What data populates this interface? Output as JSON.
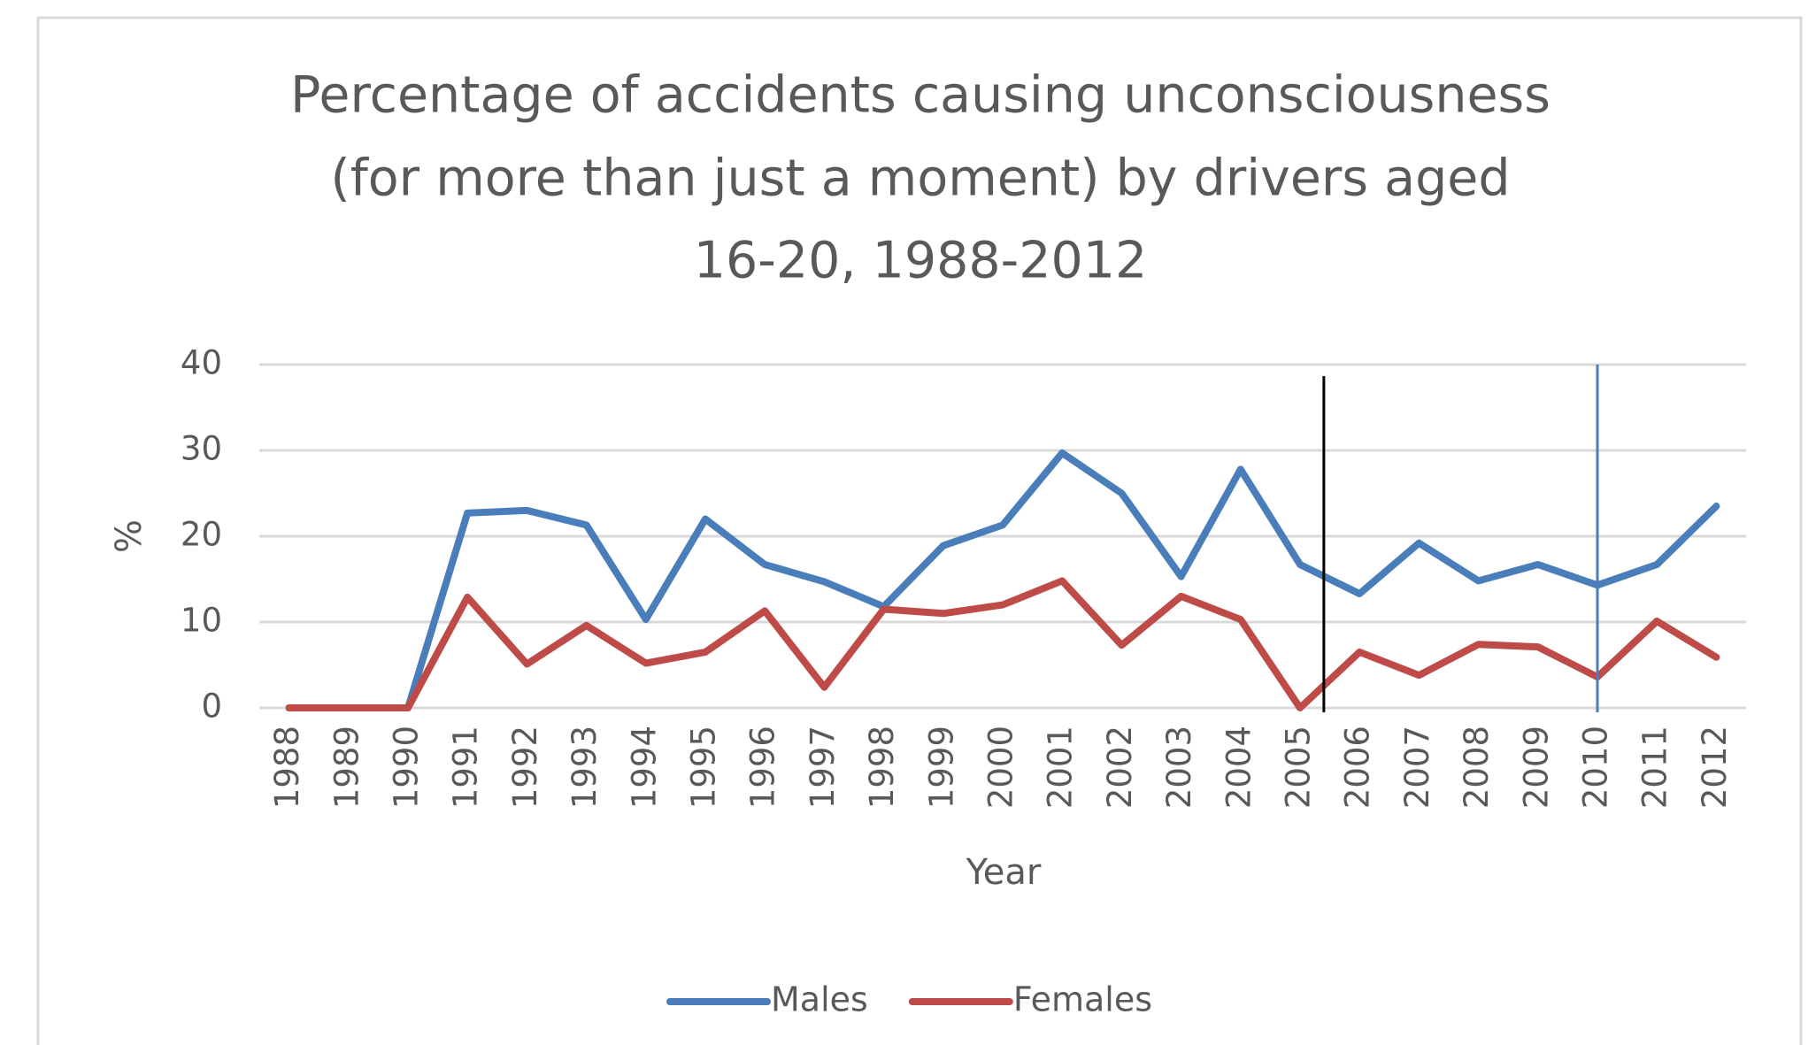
{
  "chart_data": {
    "type": "line",
    "title": [
      "Percentage of accidents causing unconsciousness",
      "(for more than just a moment) by drivers aged",
      "16-20, 1988-2012"
    ],
    "x_label": "Year",
    "y_label": "%",
    "x": [
      1988,
      1989,
      1990,
      1991,
      1992,
      1993,
      1994,
      1995,
      1996,
      1997,
      1998,
      1999,
      2000,
      2001,
      2002,
      2003,
      2004,
      2005,
      2006,
      2007,
      2008,
      2009,
      2010,
      2011,
      2012
    ],
    "series": [
      {
        "name": "Males",
        "color": "#4a7ebb",
        "values": [
          0,
          0,
          0,
          22.7,
          23,
          21.3,
          10.3,
          22,
          16.7,
          14.7,
          11.8,
          18.9,
          21.3,
          29.7,
          25,
          15.3,
          27.8,
          16.7,
          13.3,
          19.2,
          14.8,
          16.7,
          14.3,
          16.7,
          23.5
        ]
      },
      {
        "name": "Females",
        "color": "#be4b48",
        "values": [
          0,
          0,
          0,
          12.9,
          5.1,
          9.6,
          5.2,
          6.5,
          11.3,
          2.4,
          11.5,
          11,
          12,
          14.8,
          7.3,
          13,
          10.3,
          0,
          6.5,
          3.8,
          7.4,
          7.1,
          3.6,
          10.1,
          5.9
        ]
      }
    ],
    "reference_lines": [
      {
        "x": 2005.4,
        "color": "#000000"
      },
      {
        "x": 2010,
        "color": "#4a7ebb"
      }
    ],
    "ylim": [
      0,
      40
    ],
    "yticks": [
      0,
      10,
      20,
      30,
      40
    ],
    "grid": true,
    "legend": "bottom"
  }
}
